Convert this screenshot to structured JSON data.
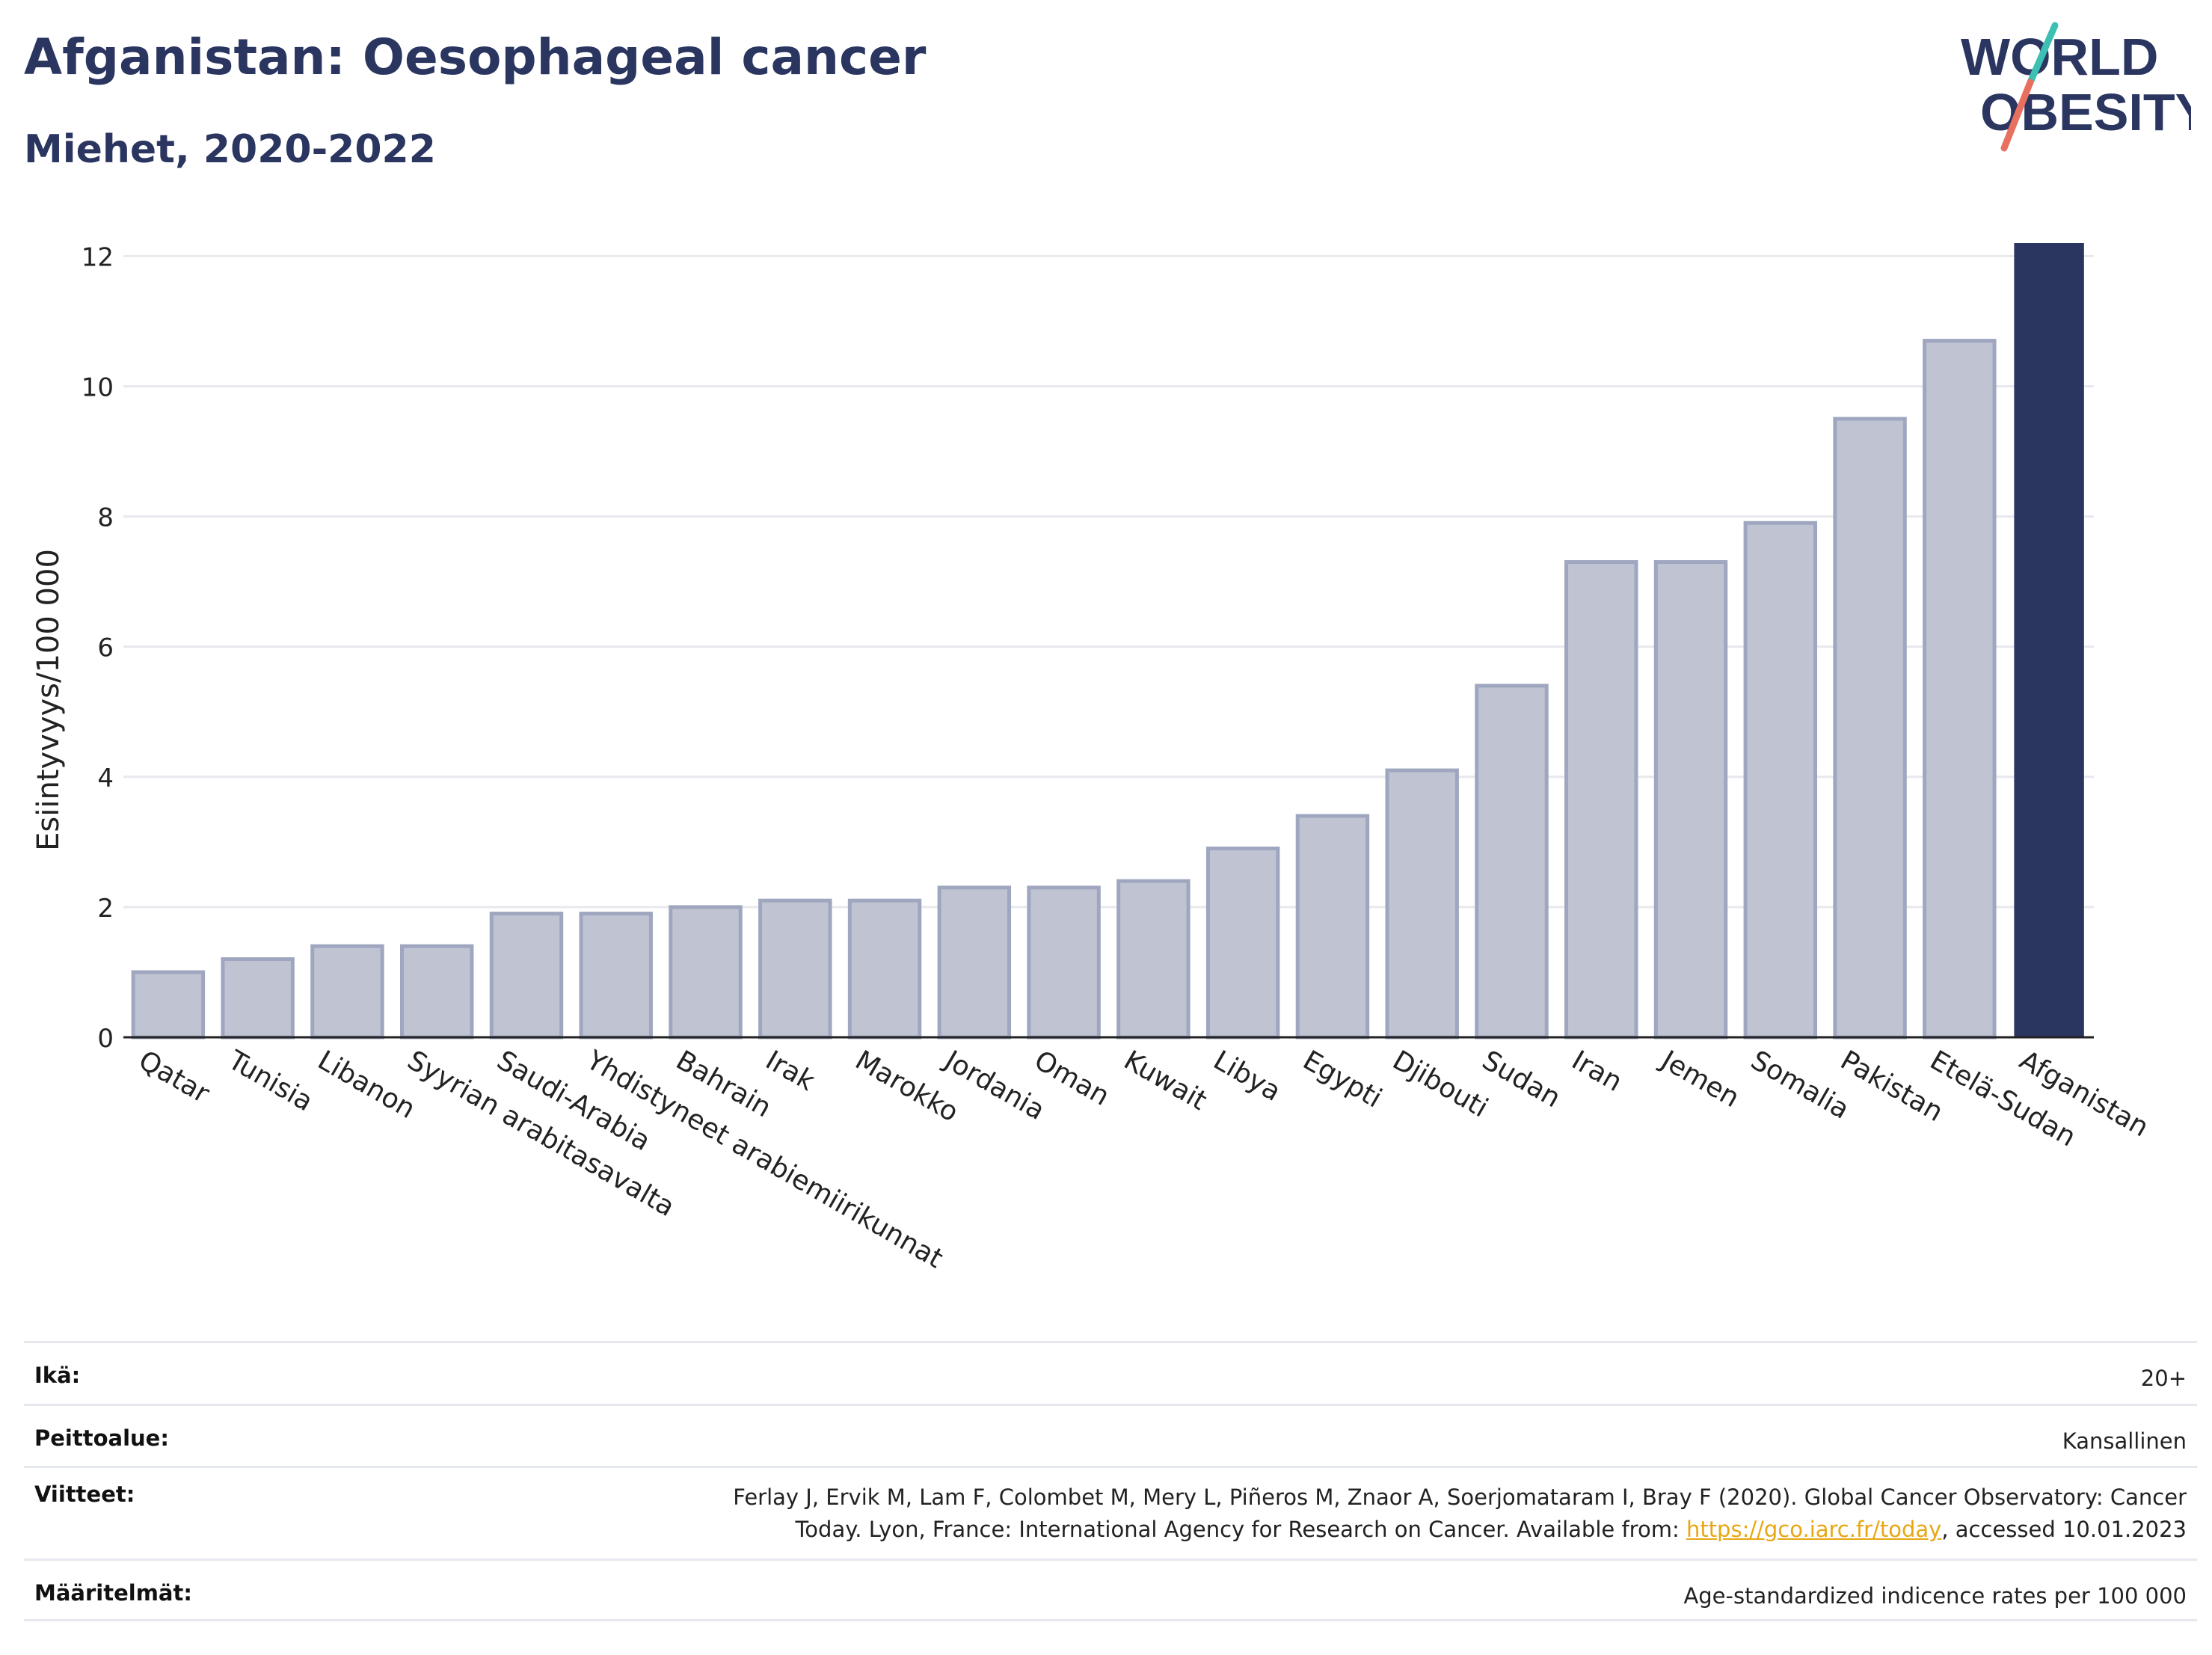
{
  "header": {
    "title": "Afganistan: Oesophageal cancer",
    "subtitle": "Miehet, 2020-2022"
  },
  "logo": {
    "line1": "WORLD",
    "line2": "OBESITY",
    "text_color": "#2a3560",
    "slash_top_color": "#3dbfb3",
    "slash_bottom_color": "#e8705f"
  },
  "chart_data": {
    "type": "bar",
    "title": "",
    "xlabel": "",
    "ylabel": "Esiintyvyys/100 000",
    "ylim": [
      0,
      12.2
    ],
    "yticks": [
      0,
      2,
      4,
      6,
      8,
      10,
      12
    ],
    "grid": true,
    "categories": [
      "Qatar",
      "Tunisia",
      "Libanon",
      "Syyrian arabitasavalta",
      "Saudi-Arabia",
      "Yhdistyneet arabiemiirikunnat",
      "Bahrain",
      "Irak",
      "Marokko",
      "Jordania",
      "Oman",
      "Kuwait",
      "Libya",
      "Egypti",
      "Djibouti",
      "Sudan",
      "Iran",
      "Jemen",
      "Somalia",
      "Pakistan",
      "Etelä-Sudan",
      "Afganistan"
    ],
    "values": [
      1.0,
      1.2,
      1.4,
      1.4,
      1.9,
      1.9,
      2.0,
      2.1,
      2.1,
      2.3,
      2.3,
      2.4,
      2.9,
      3.4,
      4.1,
      5.4,
      7.3,
      7.3,
      7.9,
      9.5,
      10.7,
      12.2
    ],
    "highlight": "Afganistan",
    "colors": {
      "bar": "#c0c4d2",
      "bar_border": "#9fa6bf",
      "highlight": "#2a3560",
      "grid": "#e8e9ee",
      "axis": "#222222"
    }
  },
  "meta": [
    {
      "label": "Ikä:",
      "value": "20+"
    },
    {
      "label": "Peittoalue:",
      "value": "Kansallinen"
    },
    {
      "label": "Viitteet:",
      "value_line1": "Ferlay J, Ervik M, Lam F, Colombet M, Mery L, Piñeros M, Znaor A, Soerjomataram I, Bray F (2020). Global Cancer Observatory: Cancer",
      "value_line2_pre": "Today. Lyon, France: International Agency for Research on Cancer. Available from: ",
      "link": "https://gco.iarc.fr/today",
      "value_line2_post": ", accessed 10.01.2023"
    },
    {
      "label": "Määritelmät:",
      "value": "Age-standardized indicence rates per 100 000"
    }
  ]
}
